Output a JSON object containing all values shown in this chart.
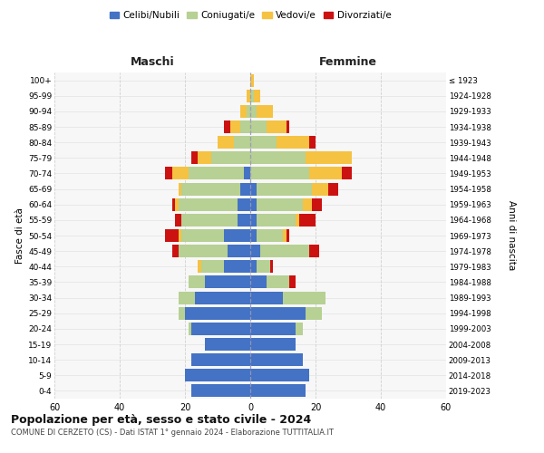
{
  "age_groups": [
    "0-4",
    "5-9",
    "10-14",
    "15-19",
    "20-24",
    "25-29",
    "30-34",
    "35-39",
    "40-44",
    "45-49",
    "50-54",
    "55-59",
    "60-64",
    "65-69",
    "70-74",
    "75-79",
    "80-84",
    "85-89",
    "90-94",
    "95-99",
    "100+"
  ],
  "birth_years": [
    "2019-2023",
    "2014-2018",
    "2009-2013",
    "2004-2008",
    "1999-2003",
    "1994-1998",
    "1989-1993",
    "1984-1988",
    "1979-1983",
    "1974-1978",
    "1969-1973",
    "1964-1968",
    "1959-1963",
    "1954-1958",
    "1949-1953",
    "1944-1948",
    "1939-1943",
    "1934-1938",
    "1929-1933",
    "1924-1928",
    "≤ 1923"
  ],
  "male": {
    "celibe": [
      18,
      20,
      18,
      14,
      18,
      20,
      17,
      14,
      8,
      7,
      8,
      4,
      4,
      3,
      2,
      0,
      0,
      0,
      0,
      0,
      0
    ],
    "coniugato": [
      0,
      0,
      0,
      0,
      1,
      2,
      5,
      5,
      7,
      15,
      13,
      17,
      18,
      18,
      17,
      12,
      5,
      3,
      1,
      0,
      0
    ],
    "vedovo": [
      0,
      0,
      0,
      0,
      0,
      0,
      0,
      0,
      1,
      0,
      1,
      0,
      1,
      1,
      5,
      4,
      5,
      3,
      2,
      1,
      0
    ],
    "divorziato": [
      0,
      0,
      0,
      0,
      0,
      0,
      0,
      0,
      0,
      2,
      4,
      2,
      1,
      0,
      2,
      2,
      0,
      2,
      0,
      0,
      0
    ]
  },
  "female": {
    "nubile": [
      17,
      18,
      16,
      14,
      14,
      17,
      10,
      5,
      2,
      3,
      2,
      2,
      2,
      2,
      0,
      0,
      0,
      0,
      0,
      0,
      0
    ],
    "coniugata": [
      0,
      0,
      0,
      0,
      2,
      5,
      13,
      7,
      4,
      15,
      8,
      12,
      14,
      17,
      18,
      17,
      8,
      5,
      2,
      1,
      0
    ],
    "vedova": [
      0,
      0,
      0,
      0,
      0,
      0,
      0,
      0,
      0,
      0,
      1,
      1,
      3,
      5,
      10,
      14,
      10,
      6,
      5,
      2,
      1
    ],
    "divorziata": [
      0,
      0,
      0,
      0,
      0,
      0,
      0,
      2,
      1,
      3,
      1,
      5,
      3,
      3,
      3,
      0,
      2,
      1,
      0,
      0,
      0
    ]
  },
  "colors": {
    "celibe_nubile": "#4472c4",
    "coniugato": "#b7d093",
    "vedovo": "#f5c242",
    "divorziato": "#cc1111"
  },
  "title": "Popolazione per età, sesso e stato civile - 2024",
  "subtitle": "COMUNE DI CERZETO (CS) - Dati ISTAT 1° gennaio 2024 - Elaborazione TUTTITALIA.IT",
  "xlabel_left": "Maschi",
  "xlabel_right": "Femmine",
  "ylabel_left": "Fasce di età",
  "ylabel_right": "Anni di nascita",
  "xlim": 60,
  "xticks": [
    60,
    40,
    20,
    0,
    20,
    40,
    60
  ],
  "legend_labels": [
    "Celibi/Nubili",
    "Coniugati/e",
    "Vedovi/e",
    "Divorziati/e"
  ],
  "background_color": "#ffffff",
  "plot_bg": "#f7f7f7",
  "grid_color": "#cccccc"
}
